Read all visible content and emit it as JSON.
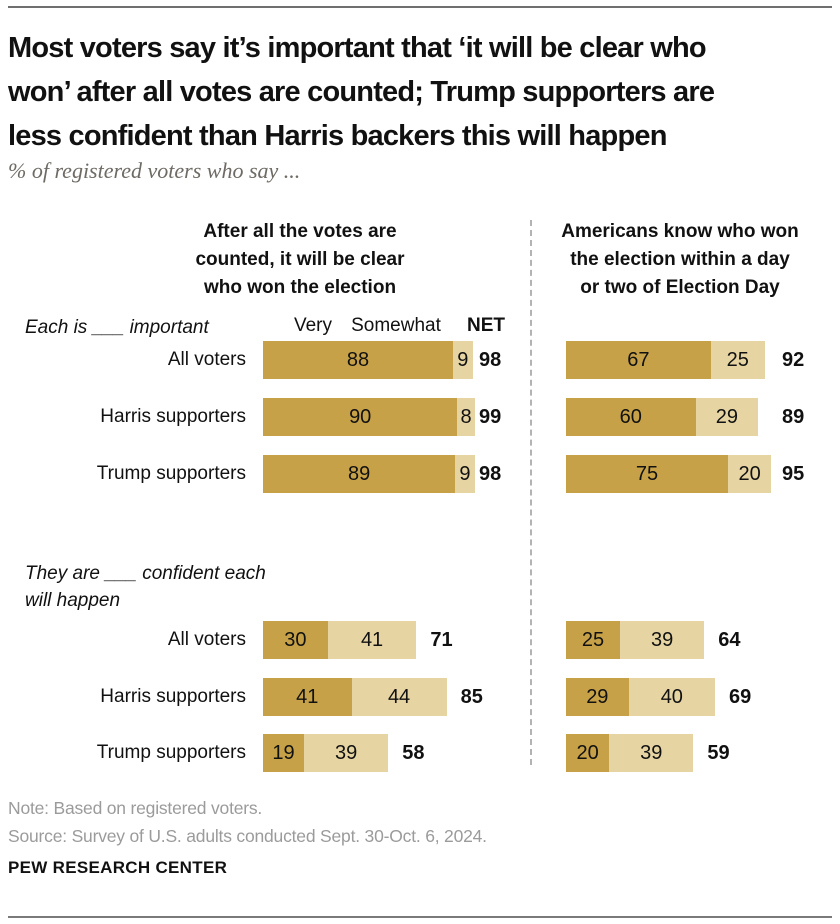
{
  "header": {
    "title": "Most voters say it’s important that ‘it will be clear who\nwon’ after all votes are counted; Trump supporters are\nless confident than Harris backers this will happen",
    "subtitle": "% of registered voters who say ..."
  },
  "legend": {
    "very": "Very",
    "somewhat": "Somewhat",
    "net": "NET"
  },
  "colors": {
    "very": "#C6A147",
    "somewhat": "#E6D5A2"
  },
  "chart_data": [
    {
      "type": "bar",
      "stacked": true,
      "orientation": "horizontal",
      "heading": "After all the votes are\ncounted, it will be clear\nwho won the election",
      "legend": [
        "Very",
        "Somewhat"
      ],
      "net_label": "NET",
      "xlim": [
        0,
        100
      ],
      "sections": [
        {
          "prompt": "Each is ___ important",
          "rows": [
            {
              "label": "All voters",
              "very": 88,
              "somewhat": 9,
              "net": 98
            },
            {
              "label": "Harris supporters",
              "very": 90,
              "somewhat": 8,
              "net": 99
            },
            {
              "label": "Trump supporters",
              "very": 89,
              "somewhat": 9,
              "net": 98
            }
          ]
        },
        {
          "prompt": "They are ___ confident each\nwill happen",
          "rows": [
            {
              "label": "All voters",
              "very": 30,
              "somewhat": 41,
              "net": 71
            },
            {
              "label": "Harris supporters",
              "very": 41,
              "somewhat": 44,
              "net": 85
            },
            {
              "label": "Trump supporters",
              "very": 19,
              "somewhat": 39,
              "net": 58
            }
          ]
        }
      ]
    },
    {
      "type": "bar",
      "stacked": true,
      "orientation": "horizontal",
      "heading": "Americans know who won\nthe election within a day\nor two of Election Day",
      "legend": [
        "Very",
        "Somewhat"
      ],
      "xlim": [
        0,
        100
      ],
      "sections": [
        {
          "rows": [
            {
              "label": "All voters",
              "very": 67,
              "somewhat": 25,
              "net": 92
            },
            {
              "label": "Harris supporters",
              "very": 60,
              "somewhat": 29,
              "net": 89
            },
            {
              "label": "Trump supporters",
              "very": 75,
              "somewhat": 20,
              "net": 95
            }
          ]
        },
        {
          "rows": [
            {
              "label": "All voters",
              "very": 25,
              "somewhat": 39,
              "net": 64
            },
            {
              "label": "Harris supporters",
              "very": 29,
              "somewhat": 40,
              "net": 69
            },
            {
              "label": "Trump supporters",
              "very": 20,
              "somewhat": 39,
              "net": 59
            }
          ]
        }
      ]
    }
  ],
  "footer": {
    "note": "Note: Based on registered voters.",
    "source": "Source: Survey of U.S. adults conducted Sept. 30-Oct. 6, 2024.",
    "brand": "PEW RESEARCH CENTER"
  }
}
